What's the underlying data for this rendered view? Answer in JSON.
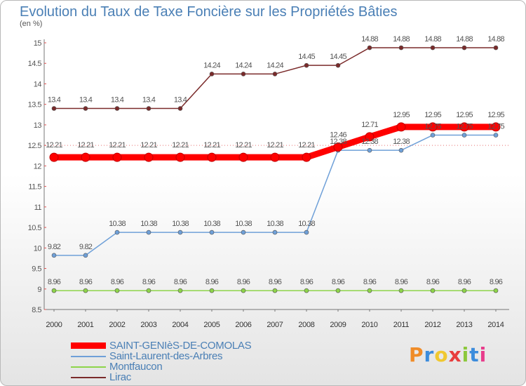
{
  "title": "Evolution du Taux de Taxe Foncière sur les Propriétés Bâties",
  "unit": "(en %)",
  "brand": {
    "text": "Proxiti",
    "colors": [
      "#f08c28",
      "#3c8cdc",
      "#f0c830",
      "#e83c3c",
      "#8cc83c",
      "#3c8cdc",
      "#e83c8c"
    ]
  },
  "chart_data": {
    "type": "line",
    "title": "Evolution du Taux de Taxe Foncière sur les Propriétés Bâties",
    "ylabel": "(en %)",
    "xlabel": "",
    "ylim": [
      8.5,
      15
    ],
    "yticks": [
      8.5,
      9,
      9.5,
      10,
      10.5,
      11,
      11.5,
      12,
      12.5,
      13,
      13.5,
      14,
      14.5,
      15
    ],
    "grid": false,
    "legend_position": "bottom-left",
    "x": [
      "2000",
      "2001",
      "2002",
      "2003",
      "2004",
      "2005",
      "2006",
      "2007",
      "2008",
      "2009",
      "2010",
      "2011",
      "2012",
      "2013",
      "2014"
    ],
    "series": [
      {
        "name": "SAINT-GENIèS-DE-COMOLAS",
        "color": "#ff0000",
        "thick": true,
        "values": [
          12.21,
          12.21,
          12.21,
          12.21,
          12.21,
          12.21,
          12.21,
          12.21,
          12.21,
          12.46,
          12.71,
          12.95,
          12.95,
          12.95,
          12.95
        ]
      },
      {
        "name": "Saint-Laurent-des-Arbres",
        "color": "#6fa0d8",
        "thick": false,
        "values": [
          9.82,
          9.82,
          10.38,
          10.38,
          10.38,
          10.38,
          10.38,
          10.38,
          10.38,
          12.38,
          12.38,
          12.38,
          12.75,
          12.75,
          12.75
        ]
      },
      {
        "name": "Montfaucon",
        "color": "#8ed44a",
        "thick": false,
        "values": [
          8.96,
          8.96,
          8.96,
          8.96,
          8.96,
          8.96,
          8.96,
          8.96,
          8.96,
          8.96,
          8.96,
          8.96,
          8.96,
          8.96,
          8.96
        ]
      },
      {
        "name": "Lirac",
        "color": "#7a2a2a",
        "thick": false,
        "values": [
          13.4,
          13.4,
          13.4,
          13.4,
          13.4,
          14.24,
          14.24,
          14.24,
          14.45,
          14.45,
          14.88,
          14.88,
          14.88,
          14.88,
          14.88
        ]
      }
    ]
  }
}
